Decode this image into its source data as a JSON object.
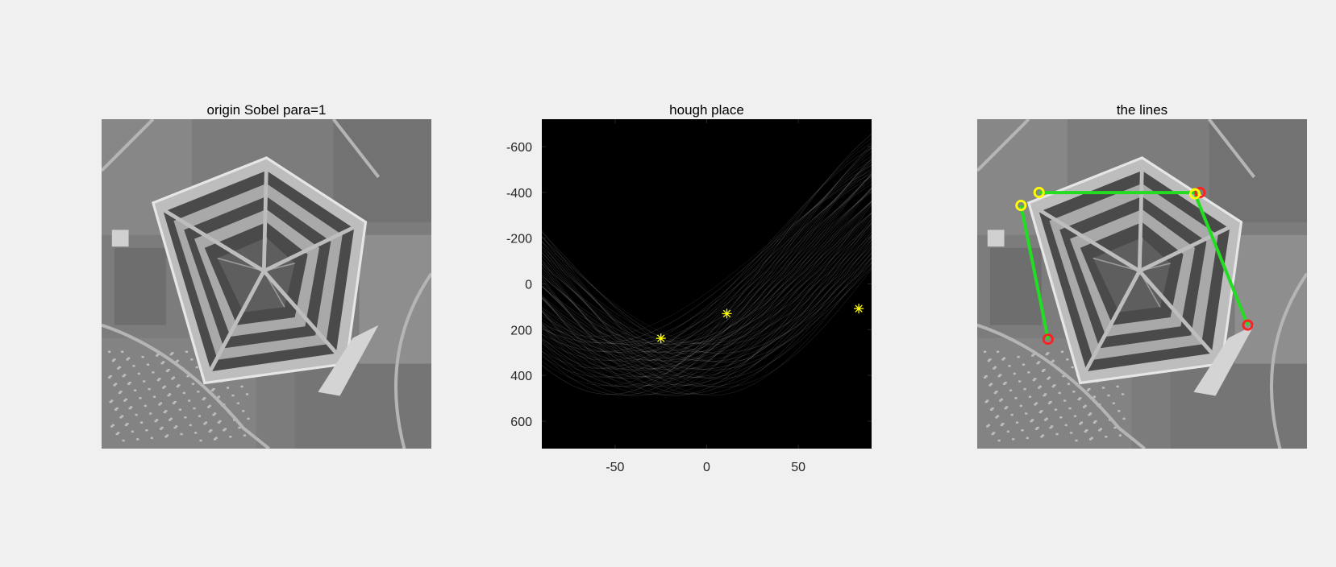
{
  "panels": [
    {
      "title": "origin Sobel para=1"
    },
    {
      "title": "hough place"
    },
    {
      "title": "the lines"
    }
  ],
  "colors": {
    "background": "#f0f0f0",
    "line": "#22dd22",
    "start_marker": "#ffff00",
    "end_marker": "#ff2020",
    "peak_marker": "#ffff00"
  },
  "chart_data": [
    {
      "type": "image",
      "title": "origin Sobel para=1",
      "description_kind": "grayscale aerial image",
      "axes": "off"
    },
    {
      "type": "heatmap",
      "title": "hough place",
      "xlabel": "",
      "ylabel": "",
      "xlim": [
        -90,
        90
      ],
      "ylim": [
        720,
        -720
      ],
      "xticks": [
        -50,
        0,
        50
      ],
      "yticks": [
        -600,
        -400,
        -200,
        0,
        200,
        400,
        600
      ],
      "colormap": "gray",
      "peaks": [
        {
          "theta": -25,
          "rho": 238
        },
        {
          "theta": 11,
          "rho": 130
        },
        {
          "theta": 83,
          "rho": 108
        }
      ],
      "peak_marker": "*"
    },
    {
      "type": "image",
      "title": "the lines",
      "axes": "off",
      "line_segments": [
        {
          "start": [
            34,
            67
          ],
          "end": [
            55,
            171
          ]
        },
        {
          "start": [
            48,
            57
          ],
          "end": [
            173,
            57
          ]
        },
        {
          "start": [
            169,
            58
          ],
          "end": [
            210,
            160
          ]
        }
      ]
    }
  ]
}
